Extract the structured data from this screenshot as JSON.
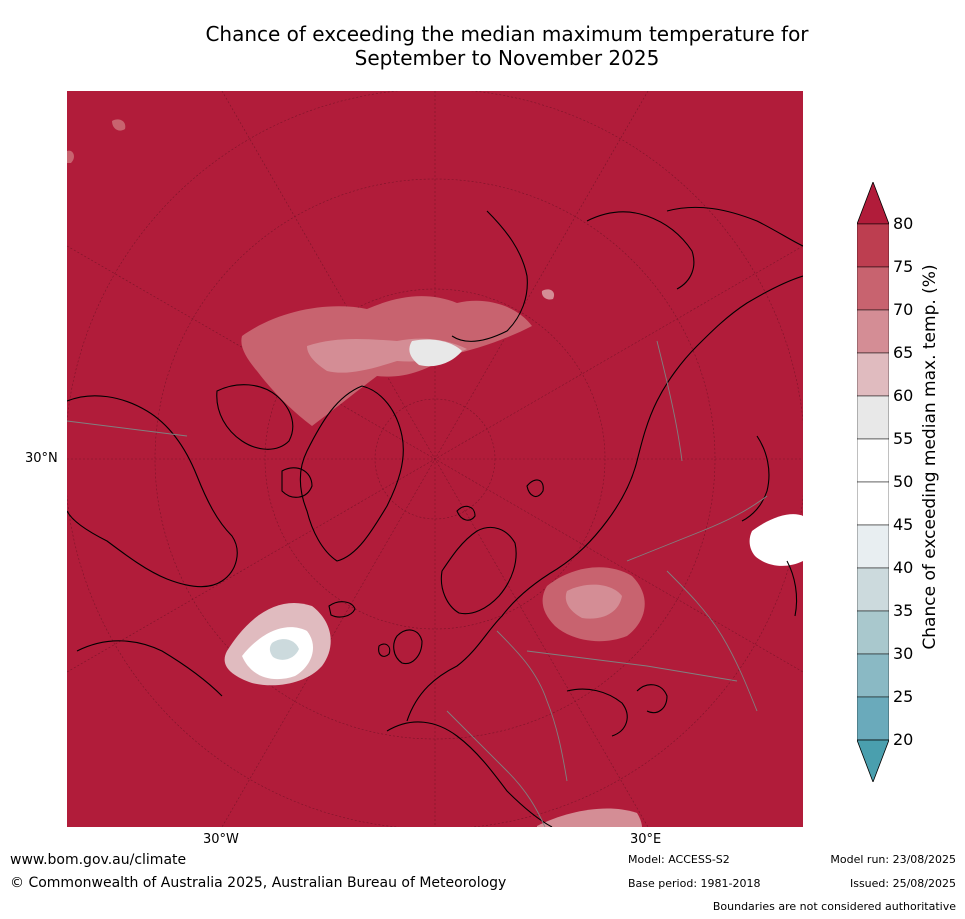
{
  "title": {
    "line1": "Chance of exceeding the median maximum temperature for",
    "line2": "September to November 2025"
  },
  "map": {
    "region": "Northern Hemisphere polar stereographic",
    "background_fill": "#b11c3a",
    "lat_label": "30°N",
    "lon_labels": [
      "30°W",
      "30°E"
    ],
    "coastline_color": "#000000",
    "border_color": "#808080"
  },
  "colorbar": {
    "title": "Chance of exceeding median max. temp. (%)",
    "ticks": [
      "80",
      "75",
      "70",
      "65",
      "60",
      "55",
      "50",
      "45",
      "40",
      "35",
      "30",
      "25",
      "20"
    ],
    "bins": [
      {
        "range": ">80",
        "color": "#b11c3a"
      },
      {
        "range": "75-80",
        "color": "#bd3e50"
      },
      {
        "range": "70-75",
        "color": "#c8636f"
      },
      {
        "range": "65-70",
        "color": "#d48d95"
      },
      {
        "range": "60-65",
        "color": "#e0bbbf"
      },
      {
        "range": "55-60",
        "color": "#e8e8e8"
      },
      {
        "range": "50-55",
        "color": "#ffffff"
      },
      {
        "range": "45-50",
        "color": "#ffffff"
      },
      {
        "range": "40-45",
        "color": "#e8eef1"
      },
      {
        "range": "35-40",
        "color": "#ccdadd"
      },
      {
        "range": "30-35",
        "color": "#a9c8cd"
      },
      {
        "range": "25-30",
        "color": "#8ab9c4"
      },
      {
        "range": "20-25",
        "color": "#6aaabb"
      },
      {
        "range": "<20",
        "color": "#4a9fae"
      }
    ]
  },
  "footer": {
    "url": "www.bom.gov.au/climate",
    "copyright": "© Commonwealth of Australia 2025, Australian Bureau of Meteorology",
    "model": "Model: ACCESS-S2",
    "base_period": "Base period: 1981-2018",
    "model_run": "Model run: 23/08/2025",
    "issued": "Issued: 25/08/2025",
    "boundaries": "Boundaries are not considered authoritative"
  }
}
